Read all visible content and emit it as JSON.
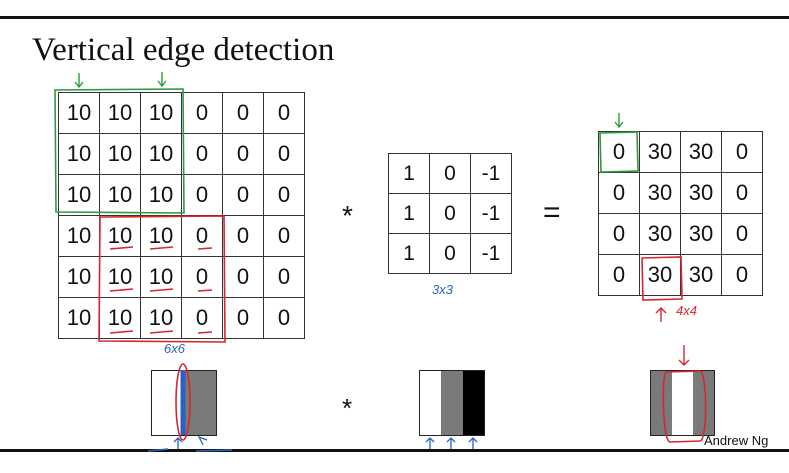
{
  "slide": {
    "title": "Vertical edge detection",
    "credit": "Andrew Ng"
  },
  "image_matrix": {
    "rows": [
      [
        "10",
        "10",
        "10",
        "0",
        "0",
        "0"
      ],
      [
        "10",
        "10",
        "10",
        "0",
        "0",
        "0"
      ],
      [
        "10",
        "10",
        "10",
        "0",
        "0",
        "0"
      ],
      [
        "10",
        "10",
        "10",
        "0",
        "0",
        "0"
      ],
      [
        "10",
        "10",
        "10",
        "0",
        "0",
        "0"
      ],
      [
        "10",
        "10",
        "10",
        "0",
        "0",
        "0"
      ]
    ],
    "size_note": "6x6"
  },
  "filter_matrix": {
    "rows": [
      [
        "1",
        "0",
        "-1"
      ],
      [
        "1",
        "0",
        "-1"
      ],
      [
        "1",
        "0",
        "-1"
      ]
    ],
    "size_note": "3x3"
  },
  "output_matrix": {
    "rows": [
      [
        "0",
        "30",
        "30",
        "0"
      ],
      [
        "0",
        "30",
        "30",
        "0"
      ],
      [
        "0",
        "30",
        "30",
        "0"
      ],
      [
        "0",
        "30",
        "30",
        "0"
      ]
    ],
    "size_note": "4x4"
  },
  "operators": {
    "convolve": "*",
    "equals": "="
  },
  "visual_strips": {
    "image_colors": [
      "#ffffff",
      "#7a7a7a"
    ],
    "filter_colors": [
      "#ffffff",
      "#7a7a7a",
      "#000000"
    ],
    "output_colors": [
      "#7a7a7a",
      "#ffffff",
      "#7a7a7a"
    ]
  },
  "annotation_colors": {
    "green": "#2e9a3a",
    "red": "#d8262c",
    "blue": "#2a62c4"
  }
}
